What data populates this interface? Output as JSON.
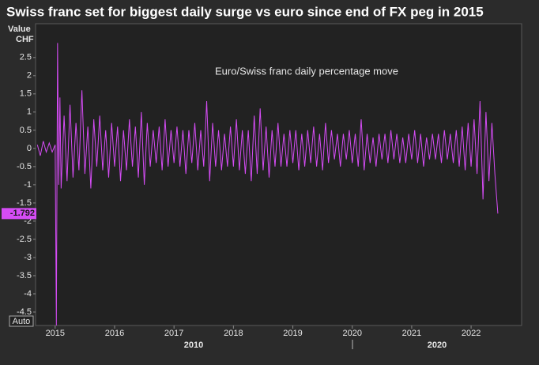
{
  "chart_data": {
    "type": "line",
    "title": "Swiss franc set for biggest daily surge vs euro since end of FX peg in 2015",
    "y_axis_label": "Value",
    "y_axis_unit": "CHF",
    "annotation": "Euro/Swiss franc daily percentage move",
    "scale_button": "Auto",
    "x_period_labels": [
      "2010",
      "2020"
    ],
    "xlim": [
      2014.67,
      2022.85
    ],
    "xticks": [
      2015,
      2016,
      2017,
      2018,
      2019,
      2020,
      2021,
      2022
    ],
    "ylim": [
      -4.87,
      3.43
    ],
    "yticks": [
      2.5,
      2,
      1.5,
      1,
      0.5,
      0,
      -0.5,
      -1,
      -1.5,
      -2,
      -2.5,
      -3,
      -3.5,
      -4,
      -4.5
    ],
    "x": [
      2014.7,
      2014.75,
      2014.8,
      2014.85,
      2014.9,
      2014.95,
      2015.0,
      2015.02,
      2015.04,
      2015.06,
      2015.08,
      2015.1,
      2015.15,
      2015.2,
      2015.25,
      2015.3,
      2015.35,
      2015.4,
      2015.45,
      2015.5,
      2015.55,
      2015.6,
      2015.65,
      2015.7,
      2015.75,
      2015.8,
      2015.85,
      2015.9,
      2015.95,
      2016.0,
      2016.05,
      2016.1,
      2016.15,
      2016.2,
      2016.25,
      2016.3,
      2016.35,
      2016.4,
      2016.45,
      2016.5,
      2016.55,
      2016.6,
      2016.65,
      2016.7,
      2016.75,
      2016.8,
      2016.85,
      2016.9,
      2016.95,
      2017.0,
      2017.05,
      2017.1,
      2017.15,
      2017.2,
      2017.25,
      2017.3,
      2017.35,
      2017.4,
      2017.45,
      2017.5,
      2017.55,
      2017.6,
      2017.65,
      2017.7,
      2017.75,
      2017.8,
      2017.85,
      2017.9,
      2017.95,
      2018.0,
      2018.05,
      2018.1,
      2018.15,
      2018.2,
      2018.25,
      2018.3,
      2018.35,
      2018.4,
      2018.45,
      2018.5,
      2018.55,
      2018.6,
      2018.65,
      2018.7,
      2018.75,
      2018.8,
      2018.85,
      2018.9,
      2018.95,
      2019.0,
      2019.05,
      2019.1,
      2019.15,
      2019.2,
      2019.25,
      2019.3,
      2019.35,
      2019.4,
      2019.45,
      2019.5,
      2019.55,
      2019.6,
      2019.65,
      2019.7,
      2019.75,
      2019.8,
      2019.85,
      2019.9,
      2019.95,
      2020.0,
      2020.05,
      2020.1,
      2020.15,
      2020.2,
      2020.25,
      2020.3,
      2020.35,
      2020.4,
      2020.45,
      2020.5,
      2020.55,
      2020.6,
      2020.65,
      2020.7,
      2020.75,
      2020.8,
      2020.85,
      2020.9,
      2020.95,
      2021.0,
      2021.05,
      2021.1,
      2021.15,
      2021.2,
      2021.25,
      2021.3,
      2021.35,
      2021.4,
      2021.45,
      2021.5,
      2021.55,
      2021.6,
      2021.65,
      2021.7,
      2021.75,
      2021.8,
      2021.85,
      2021.9,
      2021.95,
      2022.0,
      2022.05,
      2022.1,
      2022.15,
      2022.2,
      2022.25,
      2022.3,
      2022.35,
      2022.4,
      2022.45
    ],
    "series": [
      {
        "color": "#d54cf5",
        "values": [
          0.1,
          -0.2,
          0.2,
          -0.1,
          0.15,
          -0.1,
          0.1,
          -4.87,
          2.9,
          -1.0,
          1.4,
          -1.1,
          0.9,
          -0.9,
          1.2,
          -0.8,
          0.7,
          -0.6,
          1.6,
          -0.7,
          0.6,
          -1.1,
          0.8,
          -0.5,
          0.9,
          -0.6,
          0.5,
          -0.8,
          0.7,
          -0.5,
          0.6,
          -0.9,
          0.5,
          -0.6,
          0.8,
          -0.5,
          0.6,
          -0.8,
          1.0,
          -1.0,
          0.7,
          -0.5,
          0.5,
          -0.4,
          0.6,
          -0.6,
          0.8,
          -0.5,
          0.5,
          -0.4,
          0.6,
          -0.5,
          0.5,
          -0.7,
          0.5,
          -0.4,
          0.7,
          -0.6,
          0.5,
          -0.5,
          1.3,
          -0.9,
          0.7,
          -0.5,
          0.5,
          -0.6,
          0.4,
          -0.5,
          0.6,
          -0.5,
          0.8,
          -0.6,
          0.5,
          -0.7,
          0.5,
          -0.9,
          0.9,
          -0.7,
          1.1,
          -0.6,
          0.6,
          -0.8,
          0.5,
          -0.5,
          0.7,
          -0.5,
          0.4,
          -0.5,
          0.5,
          -0.4,
          0.5,
          -0.6,
          0.4,
          -0.5,
          0.5,
          -0.4,
          0.6,
          -0.5,
          0.4,
          -0.6,
          0.7,
          -0.4,
          0.5,
          -0.3,
          0.4,
          -0.5,
          0.4,
          -0.3,
          0.5,
          -0.4,
          0.4,
          -0.5,
          0.8,
          -0.6,
          0.4,
          -0.4,
          0.3,
          -0.5,
          0.4,
          -0.3,
          0.4,
          -0.4,
          0.5,
          -0.3,
          0.4,
          -0.4,
          0.3,
          -0.4,
          0.4,
          -0.3,
          0.5,
          -0.4,
          0.4,
          -0.5,
          0.3,
          -0.3,
          0.4,
          -0.3,
          0.4,
          -0.4,
          0.5,
          -0.3,
          0.4,
          -0.4,
          0.5,
          -0.5,
          0.6,
          -0.6,
          0.7,
          -0.5,
          0.8,
          -0.7,
          1.3,
          -1.4,
          1.0,
          -0.9,
          0.7,
          -0.7,
          -1.792
        ]
      }
    ]
  }
}
